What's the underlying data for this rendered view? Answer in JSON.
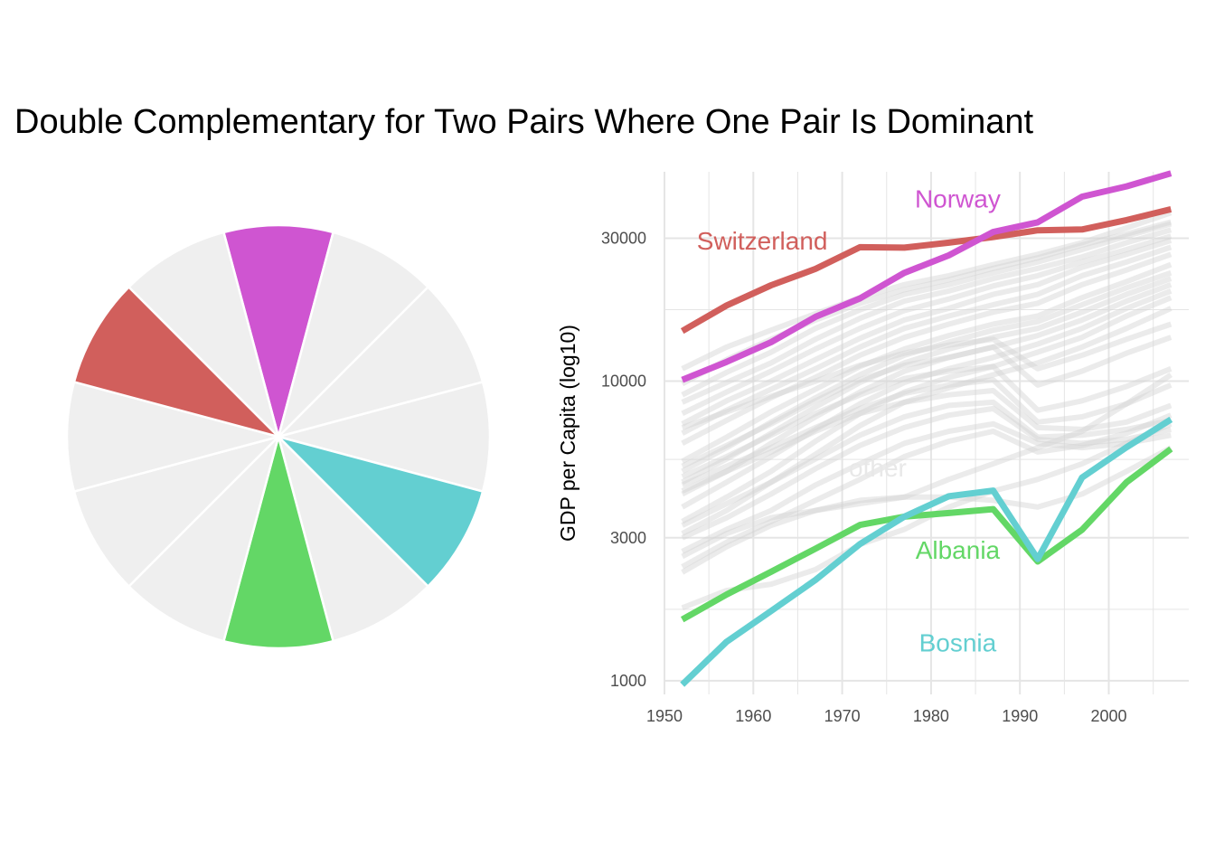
{
  "title": "Double Complementary for Two Pairs Where One Pair Is Dominant",
  "colors": {
    "grey_slice": "#efefef",
    "grey_line": "#d3d3d3",
    "norway": "#cf55d1",
    "switzerland": "#d15f5c",
    "albania": "#63d766",
    "bosnia": "#63cfd1",
    "other_label": "#e8e8e8",
    "grid": "#e5e5e5"
  },
  "chart_data": [
    {
      "type": "pie",
      "slices": 12,
      "values": [
        1,
        1,
        1,
        1,
        1,
        1,
        1,
        1,
        1,
        1,
        1,
        1
      ],
      "slice_colors": [
        "#cf55d1",
        "#efefef",
        "#efefef",
        "#efefef",
        "#63cfd1",
        "#efefef",
        "#63d766",
        "#efefef",
        "#efefef",
        "#efefef",
        "#d15f5c",
        "#efefef"
      ]
    },
    {
      "type": "line",
      "title": "",
      "xlabel": "",
      "ylabel": "GDP per Capita (log10)",
      "y_scale": "log10",
      "xlim": [
        1950,
        2009
      ],
      "ylim": [
        900,
        50000
      ],
      "x_ticks": [
        1950,
        1960,
        1970,
        1980,
        1990,
        2000
      ],
      "x_tick_labels": [
        "1950",
        "1960",
        "1970",
        "1980",
        "1990",
        "2000"
      ],
      "y_ticks": [
        1000,
        3000,
        10000,
        30000
      ],
      "y_tick_labels": [
        "1000",
        "3000",
        "10000",
        "30000"
      ],
      "x": [
        1952,
        1957,
        1962,
        1967,
        1972,
        1977,
        1982,
        1987,
        1992,
        1997,
        2002,
        2007
      ],
      "series": [
        {
          "name": "Switzerland",
          "color": "#d15f5c",
          "highlight": true,
          "values": [
            14700,
            17900,
            20900,
            23700,
            28000,
            27900,
            29000,
            30300,
            31900,
            32100,
            34500,
            37500
          ]
        },
        {
          "name": "Norway",
          "color": "#cf55d1",
          "highlight": true,
          "values": [
            10100,
            11600,
            13500,
            16400,
            18900,
            23000,
            26300,
            31500,
            33900,
            41300,
            44700,
            49400
          ]
        },
        {
          "name": "Albania",
          "color": "#63d766",
          "highlight": true,
          "values": [
            1600,
            1940,
            2310,
            2760,
            3310,
            3530,
            3630,
            3740,
            2500,
            3190,
            4600,
            5940
          ]
        },
        {
          "name": "Bosnia",
          "color": "#63cfd1",
          "highlight": true,
          "values": [
            970,
            1350,
            1710,
            2170,
            2860,
            3530,
            4130,
            4310,
            2550,
            4770,
            6020,
            7450
          ]
        },
        {
          "name": "other",
          "color": "#d3d3d3",
          "highlight": false,
          "values": [
            11000,
            13000,
            14800,
            16800,
            19000,
            21000,
            22500,
            24500,
            26500,
            29000,
            32500,
            36500
          ]
        },
        {
          "name": "other",
          "color": "#d3d3d3",
          "highlight": false,
          "values": [
            9800,
            11800,
            13800,
            16000,
            18200,
            20200,
            21800,
            23800,
            25800,
            28500,
            31000,
            34000
          ]
        },
        {
          "name": "other",
          "color": "#d3d3d3",
          "highlight": false,
          "values": [
            9000,
            10700,
            12500,
            15000,
            17300,
            19500,
            21000,
            23000,
            25000,
            27500,
            30500,
            33500
          ]
        },
        {
          "name": "other",
          "color": "#d3d3d3",
          "highlight": false,
          "values": [
            8500,
            9900,
            11500,
            13800,
            16200,
            18500,
            20000,
            22000,
            23800,
            26000,
            29000,
            32000
          ]
        },
        {
          "name": "other",
          "color": "#d3d3d3",
          "highlight": false,
          "values": [
            7800,
            9200,
            10800,
            12800,
            15000,
            17200,
            18800,
            20800,
            22500,
            25000,
            27500,
            30500
          ]
        },
        {
          "name": "other",
          "color": "#d3d3d3",
          "highlight": false,
          "values": [
            7200,
            8600,
            10000,
            11800,
            13900,
            16000,
            17500,
            19500,
            21000,
            24000,
            26500,
            29500
          ]
        },
        {
          "name": "other",
          "color": "#d3d3d3",
          "highlight": false,
          "values": [
            6700,
            8000,
            9400,
            11000,
            13000,
            15000,
            16500,
            18000,
            19500,
            22500,
            25000,
            28000
          ]
        },
        {
          "name": "other",
          "color": "#d3d3d3",
          "highlight": false,
          "values": [
            6200,
            7400,
            8800,
            10300,
            12200,
            14000,
            15500,
            17000,
            18200,
            21000,
            23500,
            26500
          ]
        },
        {
          "name": "other",
          "color": "#d3d3d3",
          "highlight": false,
          "values": [
            5400,
            6500,
            7900,
            9400,
            11200,
            12800,
            14200,
            15500,
            16500,
            19000,
            21500,
            24500
          ]
        },
        {
          "name": "other",
          "color": "#d3d3d3",
          "highlight": false,
          "values": [
            5000,
            6000,
            7300,
            8800,
            10500,
            12200,
            13500,
            14800,
            15800,
            18000,
            20500,
            23000
          ]
        },
        {
          "name": "other",
          "color": "#d3d3d3",
          "highlight": false,
          "values": [
            4600,
            5500,
            6700,
            8200,
            9900,
            11500,
            12800,
            14000,
            15000,
            17000,
            19500,
            22000
          ]
        },
        {
          "name": "other",
          "color": "#d3d3d3",
          "highlight": false,
          "values": [
            4200,
            5000,
            6200,
            7600,
            9200,
            10800,
            12000,
            13000,
            14200,
            16000,
            18500,
            21000
          ]
        },
        {
          "name": "other",
          "color": "#d3d3d3",
          "highlight": false,
          "values": [
            3800,
            4600,
            5600,
            6900,
            8400,
            9900,
            11000,
            12000,
            13300,
            15000,
            17500,
            20000
          ]
        },
        {
          "name": "other",
          "color": "#d3d3d3",
          "highlight": false,
          "values": [
            3400,
            4100,
            5000,
            6300,
            7800,
            9200,
            10300,
            11200,
            12500,
            14000,
            16500,
            19000
          ]
        },
        {
          "name": "other",
          "color": "#d3d3d3",
          "highlight": false,
          "values": [
            3100,
            3700,
            4600,
            5700,
            7100,
            8500,
            9500,
            10500,
            11500,
            13000,
            15000,
            17500
          ]
        },
        {
          "name": "other",
          "color": "#d3d3d3",
          "highlight": false,
          "values": [
            7000,
            7900,
            8900,
            10000,
            11300,
            12400,
            13200,
            13800,
            11000,
            12200,
            13800,
            15500
          ]
        },
        {
          "name": "other",
          "color": "#d3d3d3",
          "highlight": false,
          "values": [
            5200,
            6100,
            7200,
            8600,
            10100,
            11300,
            12000,
            13000,
            9700,
            10800,
            12400,
            14000
          ]
        },
        {
          "name": "other",
          "color": "#d3d3d3",
          "highlight": false,
          "values": [
            4800,
            5600,
            6600,
            7800,
            9000,
            10200,
            10800,
            11200,
            8000,
            8600,
            9600,
            11000
          ]
        },
        {
          "name": "other",
          "color": "#d3d3d3",
          "highlight": false,
          "values": [
            4500,
            5200,
            6000,
            7000,
            8100,
            9100,
            9700,
            10100,
            7300,
            7600,
            8400,
            9700
          ]
        },
        {
          "name": "other",
          "color": "#d3d3d3",
          "highlight": false,
          "values": [
            4300,
            5000,
            5800,
            6800,
            7800,
            8500,
            9000,
            9300,
            7000,
            6900,
            7300,
            8300
          ]
        },
        {
          "name": "other",
          "color": "#d3d3d3",
          "highlight": false,
          "values": [
            3300,
            3900,
            4600,
            5500,
            6600,
            7600,
            8300,
            8500,
            6500,
            6600,
            6900,
            7400
          ]
        },
        {
          "name": "other",
          "color": "#d3d3d3",
          "highlight": false,
          "values": [
            3000,
            3500,
            4200,
            5100,
            6100,
            7000,
            7700,
            8100,
            6400,
            6200,
            6400,
            6900
          ]
        },
        {
          "name": "other",
          "color": "#d3d3d3",
          "highlight": false,
          "values": [
            2700,
            3200,
            3700,
            4500,
            5300,
            6200,
            6800,
            7200,
            6200,
            6000,
            6200,
            6600
          ]
        },
        {
          "name": "other",
          "color": "#d3d3d3",
          "highlight": false,
          "values": [
            2400,
            2900,
            3400,
            4000,
            4700,
            5600,
            6300,
            6800,
            5800,
            6100,
            6700,
            7700
          ]
        },
        {
          "name": "other",
          "color": "#d3d3d3",
          "highlight": false,
          "values": [
            1750,
            2000,
            2100,
            2350,
            2850,
            3200,
            3800,
            4300,
            4700,
            5300,
            6200,
            7200
          ]
        },
        {
          "name": "other",
          "color": "#d3d3d3",
          "highlight": false,
          "values": [
            2600,
            3100,
            3500,
            3700,
            3900,
            4100,
            4700,
            5300,
            6000,
            6800,
            8400,
            10500
          ]
        },
        {
          "name": "other",
          "color": "#d3d3d3",
          "highlight": false,
          "values": [
            2300,
            2800,
            3300,
            3700,
            4000,
            4100,
            4100,
            4000,
            3800,
            4200,
            5000,
            6000
          ]
        }
      ],
      "labels": [
        {
          "text": "Switzerland",
          "x": 1961,
          "y": 27500,
          "color": "#d15f5c"
        },
        {
          "text": "Norway",
          "x": 1983,
          "y": 38000,
          "color": "#cf55d1"
        },
        {
          "text": "other",
          "x": 1974,
          "y": 4800,
          "color": "#e8e8e8"
        },
        {
          "text": "Albania",
          "x": 1983,
          "y": 2550,
          "color": "#63d766"
        },
        {
          "text": "Bosnia",
          "x": 1983,
          "y": 1250,
          "color": "#63cfd1"
        }
      ]
    }
  ]
}
